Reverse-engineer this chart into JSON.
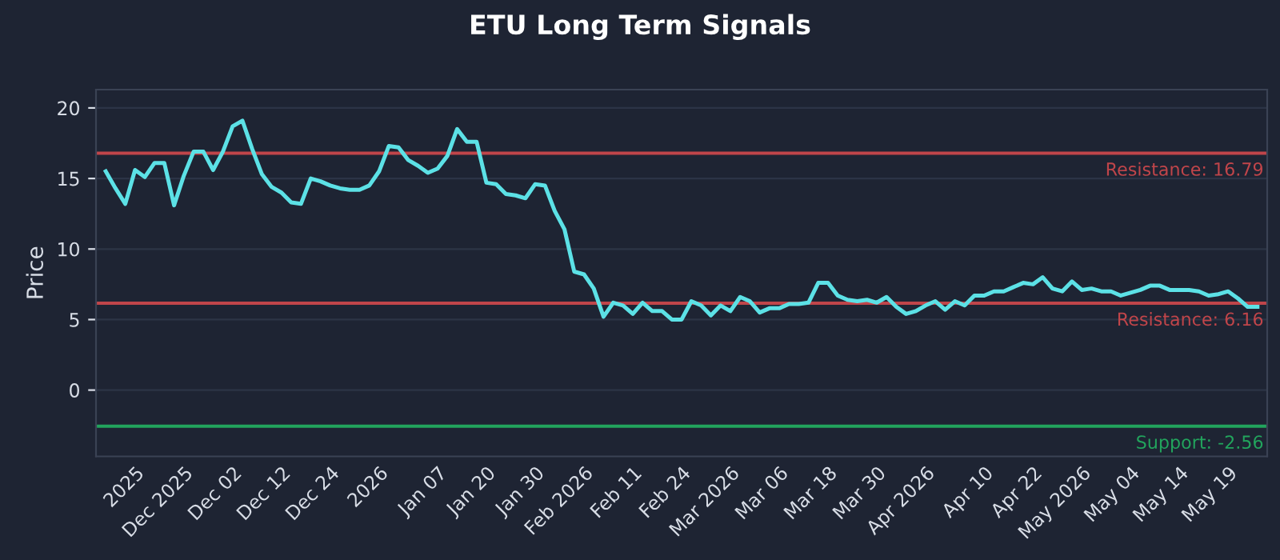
{
  "chart_data": {
    "type": "line",
    "title": "ETU Long Term Signals",
    "ylabel": "Price",
    "categories": [
      null,
      null,
      null,
      "2025",
      null,
      null,
      null,
      null,
      "Dec 2025",
      null,
      null,
      null,
      null,
      "Dec 02",
      null,
      null,
      null,
      null,
      "Dec 12",
      null,
      null,
      null,
      null,
      "Dec 24",
      null,
      null,
      null,
      null,
      "2026",
      null,
      null,
      null,
      null,
      null,
      "Jan 07",
      null,
      null,
      null,
      null,
      "Jan 20",
      null,
      null,
      null,
      null,
      "Jan 30",
      null,
      null,
      null,
      null,
      "Feb 2026",
      null,
      null,
      null,
      null,
      "Feb 11",
      null,
      null,
      null,
      null,
      "Feb 24",
      null,
      null,
      null,
      null,
      "Mar 2026",
      null,
      null,
      null,
      null,
      "Mar 06",
      null,
      null,
      null,
      null,
      "Mar 18",
      null,
      null,
      null,
      null,
      "Mar 30",
      null,
      null,
      null,
      null,
      "Apr 2026",
      null,
      null,
      null,
      null,
      null,
      "Apr 10",
      null,
      null,
      null,
      null,
      "Apr 22",
      null,
      null,
      null,
      null,
      "May 2026",
      null,
      null,
      null,
      null,
      "May 04",
      null,
      null,
      null,
      null,
      "May 14",
      null,
      null,
      null,
      null,
      "May 19",
      null,
      null,
      null
    ],
    "series": [
      {
        "color": "#5ce1e6",
        "values": [
          15.5,
          14.3,
          13.2,
          15.6,
          15.1,
          16.1,
          16.1,
          13.1,
          15.2,
          16.9,
          16.9,
          15.6,
          16.9,
          18.7,
          19.1,
          17.1,
          15.3,
          14.4,
          14.0,
          13.3,
          13.2,
          15.0,
          14.8,
          14.5,
          14.3,
          14.2,
          14.2,
          14.5,
          15.5,
          17.3,
          17.2,
          16.3,
          15.9,
          15.4,
          15.7,
          16.6,
          18.5,
          17.6,
          17.6,
          14.7,
          14.6,
          13.9,
          13.8,
          13.6,
          14.6,
          14.5,
          12.7,
          11.4,
          8.4,
          8.2,
          7.2,
          5.2,
          6.2,
          6.0,
          5.4,
          6.2,
          5.6,
          5.6,
          5.0,
          5.0,
          6.3,
          6.0,
          5.3,
          6.0,
          5.6,
          6.6,
          6.3,
          5.5,
          5.8,
          5.8,
          6.1,
          6.1,
          6.2,
          7.6,
          7.6,
          6.7,
          6.4,
          6.3,
          6.4,
          6.2,
          6.6,
          5.9,
          5.4,
          5.6,
          6.0,
          6.3,
          5.7,
          6.3,
          6.0,
          6.7,
          6.7,
          7.0,
          7.0,
          7.3,
          7.6,
          7.5,
          8.0,
          7.2,
          7.0,
          7.7,
          7.1,
          7.2,
          7.0,
          7.0,
          6.7,
          6.9,
          7.1,
          7.4,
          7.4,
          7.1,
          7.1,
          7.1,
          7.0,
          6.7,
          6.8,
          7.0,
          6.5,
          5.9,
          5.9
        ]
      }
    ],
    "ylim": [
      -4.7,
      21.3
    ],
    "yticks": [
      0,
      5,
      10,
      15,
      20
    ],
    "grid": "y",
    "legend": false,
    "marker": "none",
    "line_style": "solid",
    "ref_lines": [
      {
        "axis": "y",
        "value": 16.79,
        "label": "Resistance: 16.79",
        "color": "#c0454a"
      },
      {
        "axis": "y",
        "value": 6.16,
        "label": "Resistance: 6.16",
        "color": "#c0454a"
      },
      {
        "axis": "y",
        "value": -2.56,
        "label": "Support: -2.56",
        "color": "#22a45d"
      }
    ]
  }
}
